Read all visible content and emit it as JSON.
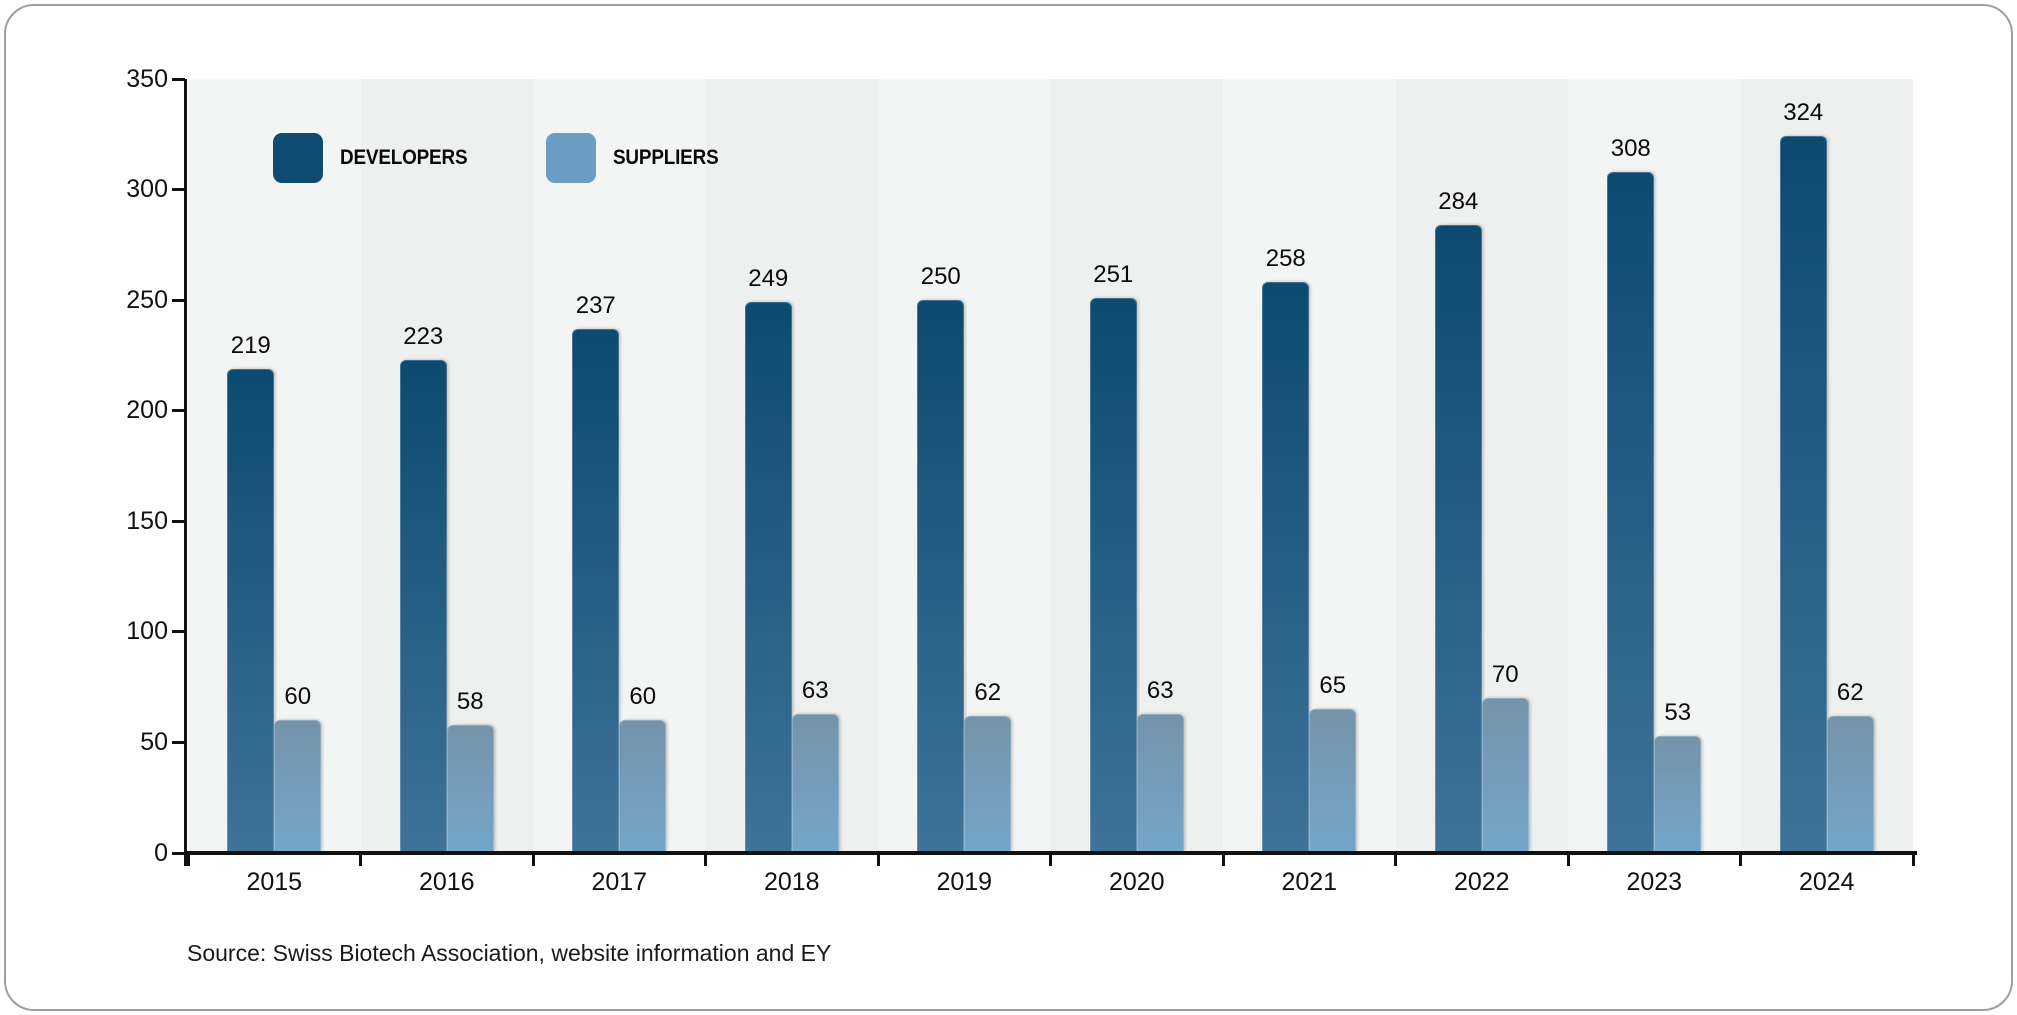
{
  "chart_data": {
    "type": "bar",
    "title": "",
    "categories": [
      "2015",
      "2016",
      "2017",
      "2018",
      "2019",
      "2020",
      "2021",
      "2022",
      "2023",
      "2024"
    ],
    "series": [
      {
        "name": "DEVELOPERS",
        "values": [
          219,
          223,
          237,
          249,
          250,
          251,
          258,
          284,
          308,
          324
        ]
      },
      {
        "name": "SUPPLIERS",
        "values": [
          60,
          58,
          60,
          63,
          62,
          63,
          65,
          70,
          53,
          62
        ]
      }
    ],
    "xlabel": "",
    "ylabel": "",
    "ylim": [
      0,
      350
    ],
    "yticks": [
      0,
      50,
      100,
      150,
      200,
      250,
      300,
      350
    ],
    "grid": false,
    "legend_position": "top-left",
    "value_labels": true
  },
  "footer": {
    "source_note": "Source: Swiss Biotech Association, website information and EY"
  },
  "colors": {
    "developers_top": "#0c4a70",
    "developers_bottom": "#3f7399",
    "suppliers_top": "#7493a9",
    "suppliers_bottom": "#73a6cb",
    "legend_developers": "#0e4c72",
    "legend_suppliers": "#6b9dc3",
    "axis": "#111111",
    "plot_stripe_light": "#f3f4f4",
    "plot_stripe_dark": "#eef0f0",
    "card_border": "#9aa0a3"
  }
}
